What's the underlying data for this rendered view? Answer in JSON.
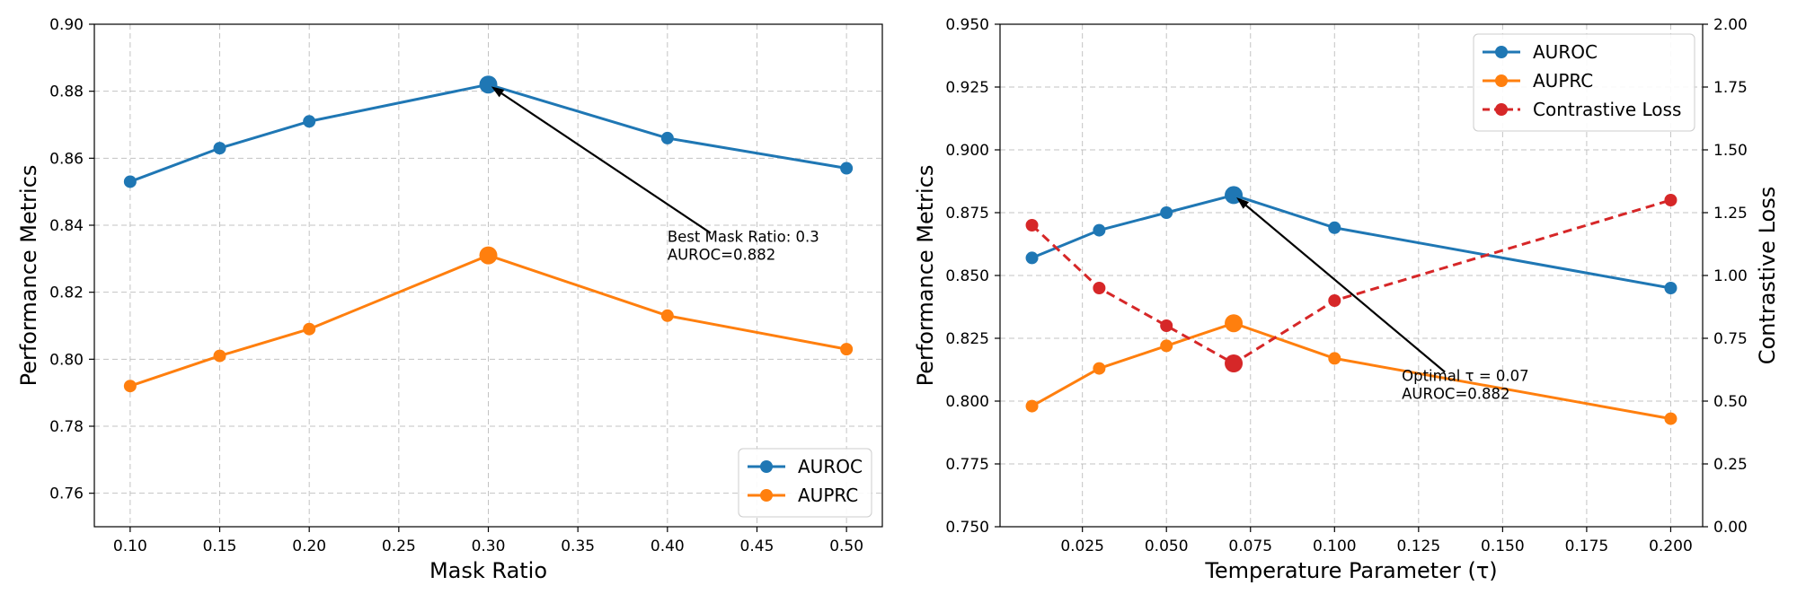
{
  "colors": {
    "auroc": "#1f77b4",
    "auprc": "#ff7f0e",
    "loss": "#d62728",
    "grid": "#b0b0b0"
  },
  "chart_data": [
    {
      "type": "line",
      "xlabel": "Mask Ratio",
      "ylabel": "Performance Metrics",
      "xlim": [
        0.08,
        0.52
      ],
      "ylim": [
        0.75,
        0.9
      ],
      "xticks": [
        0.1,
        0.15,
        0.2,
        0.25,
        0.3,
        0.35,
        0.4,
        0.45,
        0.5
      ],
      "xtick_labels": [
        "0.10",
        "0.15",
        "0.20",
        "0.25",
        "0.30",
        "0.35",
        "0.40",
        "0.45",
        "0.50"
      ],
      "yticks": [
        0.76,
        0.78,
        0.8,
        0.82,
        0.84,
        0.86,
        0.88,
        0.9
      ],
      "ytick_labels": [
        "0.76",
        "0.78",
        "0.80",
        "0.82",
        "0.84",
        "0.86",
        "0.88",
        "0.90"
      ],
      "grid": true,
      "legend_position": "lower-right",
      "series": [
        {
          "name": "AUROC",
          "color": "#1f77b4",
          "dashed": false,
          "x": [
            0.1,
            0.15,
            0.2,
            0.3,
            0.4,
            0.5
          ],
          "values": [
            0.853,
            0.863,
            0.871,
            0.882,
            0.866,
            0.857
          ],
          "highlight_x": 0.3
        },
        {
          "name": "AUPRC",
          "color": "#ff7f0e",
          "dashed": false,
          "x": [
            0.1,
            0.15,
            0.2,
            0.3,
            0.4,
            0.5
          ],
          "values": [
            0.792,
            0.801,
            0.809,
            0.831,
            0.813,
            0.803
          ],
          "highlight_x": 0.3
        }
      ],
      "annotation": {
        "lines": [
          "Best Mask Ratio: 0.3",
          "AUROC=0.882"
        ],
        "point": [
          0.3,
          0.882
        ],
        "text_at": [
          0.4,
          0.835
        ]
      }
    },
    {
      "type": "line",
      "xlabel": "Temperature Parameter (τ)",
      "ylabel": "Performance Metrics",
      "y2label": "Contrastive Loss",
      "xlim": [
        0.0005,
        0.2095
      ],
      "ylim": [
        0.75,
        0.95
      ],
      "y2lim": [
        0.0,
        2.0
      ],
      "xticks": [
        0.025,
        0.05,
        0.075,
        0.1,
        0.125,
        0.15,
        0.175,
        0.2
      ],
      "xtick_labels": [
        "0.025",
        "0.050",
        "0.075",
        "0.100",
        "0.125",
        "0.150",
        "0.175",
        "0.200"
      ],
      "yticks": [
        0.75,
        0.775,
        0.8,
        0.825,
        0.85,
        0.875,
        0.9,
        0.925,
        0.95
      ],
      "ytick_labels": [
        "0.750",
        "0.775",
        "0.800",
        "0.825",
        "0.850",
        "0.875",
        "0.900",
        "0.925",
        "0.950"
      ],
      "y2ticks": [
        0.0,
        0.25,
        0.5,
        0.75,
        1.0,
        1.25,
        1.5,
        1.75,
        2.0
      ],
      "y2tick_labels": [
        "0.00",
        "0.25",
        "0.50",
        "0.75",
        "1.00",
        "1.25",
        "1.50",
        "1.75",
        "2.00"
      ],
      "grid": true,
      "legend_position": "upper-right",
      "series": [
        {
          "name": "AUROC",
          "color": "#1f77b4",
          "dashed": false,
          "x": [
            0.01,
            0.03,
            0.05,
            0.07,
            0.1,
            0.2
          ],
          "values": [
            0.857,
            0.868,
            0.875,
            0.882,
            0.869,
            0.845
          ],
          "highlight_x": 0.07
        },
        {
          "name": "AUPRC",
          "color": "#ff7f0e",
          "dashed": false,
          "x": [
            0.01,
            0.03,
            0.05,
            0.07,
            0.1,
            0.2
          ],
          "values": [
            0.798,
            0.813,
            0.822,
            0.831,
            0.817,
            0.793
          ],
          "highlight_x": 0.07
        },
        {
          "name": "Contrastive Loss",
          "color": "#d62728",
          "dashed": true,
          "axis": "y2",
          "x": [
            0.01,
            0.03,
            0.05,
            0.07,
            0.1,
            0.2
          ],
          "values": [
            1.2,
            0.95,
            0.8,
            0.65,
            0.9,
            1.3
          ],
          "highlight_x": 0.07
        }
      ],
      "annotation": {
        "lines": [
          "Optimal τ = 0.07",
          "AUROC=0.882"
        ],
        "point": [
          0.07,
          0.882
        ],
        "text_at": [
          0.12,
          0.808
        ]
      }
    }
  ]
}
